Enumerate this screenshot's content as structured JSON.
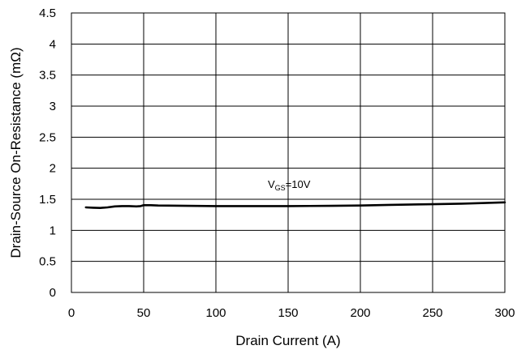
{
  "chart_data": {
    "type": "line",
    "title": "",
    "xlabel": "Drain Current (A)",
    "ylabel": "Drain-Source On-Resistance (mΩ)",
    "xlim": [
      0,
      300
    ],
    "ylim": [
      0,
      4.5
    ],
    "x_ticks": [
      0,
      50,
      100,
      150,
      200,
      250,
      300
    ],
    "y_ticks": [
      0,
      0.5,
      1,
      1.5,
      2,
      2.5,
      3,
      3.5,
      4,
      4.5
    ],
    "x_tick_labels": [
      "0",
      "50",
      "100",
      "150",
      "200",
      "250",
      "300"
    ],
    "y_tick_labels": [
      "0",
      "0.5",
      "1",
      "1.5",
      "2",
      "2.5",
      "3",
      "3.5",
      "4",
      "4.5"
    ],
    "grid": true,
    "annotation": {
      "main": "V",
      "sub": "GS",
      "rest": "=10V"
    },
    "series": [
      {
        "color": "#000000",
        "x": [
          10,
          15,
          20,
          25,
          30,
          35,
          40,
          45,
          48,
          50,
          52,
          55,
          60,
          80,
          100,
          120,
          150,
          180,
          200,
          220,
          250,
          270,
          300
        ],
        "y": [
          1.37,
          1.365,
          1.36,
          1.37,
          1.385,
          1.39,
          1.39,
          1.385,
          1.39,
          1.405,
          1.405,
          1.405,
          1.4,
          1.395,
          1.39,
          1.39,
          1.39,
          1.395,
          1.4,
          1.41,
          1.42,
          1.43,
          1.45
        ]
      }
    ]
  }
}
